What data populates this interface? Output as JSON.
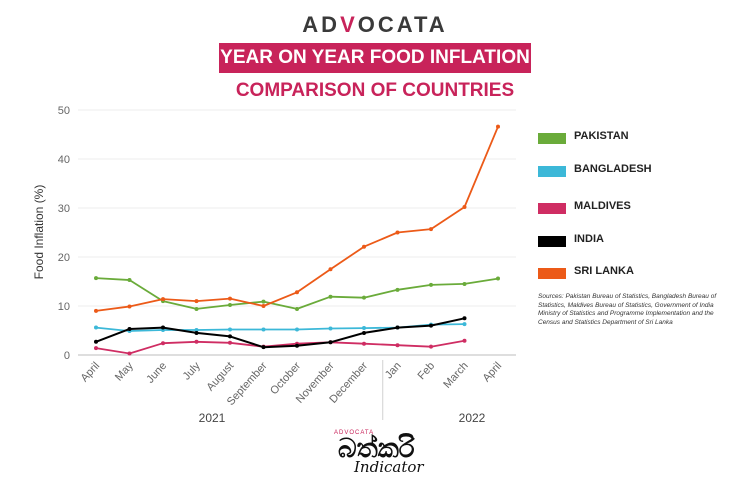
{
  "header": {
    "brand_pre": "AD",
    "brand_v": "V",
    "brand_post": "OCATA",
    "title": "YEAR ON YEAR FOOD INFLATION",
    "subtitle": "COMPARISON OF COUNTRIES"
  },
  "chart_data": {
    "type": "line",
    "title": "YEAR ON YEAR FOOD INFLATION",
    "subtitle": "COMPARISON OF COUNTRIES",
    "xlabel": "",
    "ylabel": "Food Inflation (%)",
    "ylim": [
      0,
      50
    ],
    "yticks": [
      0,
      10,
      20,
      30,
      40,
      50
    ],
    "grid": true,
    "categories": [
      "April",
      "May",
      "June",
      "July",
      "August",
      "September",
      "October",
      "November",
      "December",
      "Jan",
      "Feb",
      "March",
      "April"
    ],
    "year_groups": [
      {
        "label": "2021",
        "from": 0,
        "to": 8
      },
      {
        "label": "2022",
        "from": 9,
        "to": 12
      }
    ],
    "legend_position": "right",
    "series": [
      {
        "name": "PAKISTAN",
        "color": "#6aab3a",
        "values": [
          15.7,
          15.3,
          11.0,
          9.4,
          10.2,
          10.9,
          9.4,
          11.9,
          11.7,
          13.3,
          14.3,
          14.5,
          15.6
        ]
      },
      {
        "name": "BANGLADESH",
        "color": "#3cb8d8",
        "values": [
          5.6,
          4.9,
          5.1,
          5.1,
          5.2,
          5.2,
          5.2,
          5.4,
          5.5,
          5.6,
          6.2,
          6.3,
          null
        ]
      },
      {
        "name": "MALDIVES",
        "color": "#cf2d63",
        "values": [
          1.4,
          0.3,
          2.4,
          2.7,
          2.5,
          1.7,
          2.3,
          2.6,
          2.3,
          2.0,
          1.7,
          2.9,
          null
        ]
      },
      {
        "name": "INDIA",
        "color": "#000000",
        "values": [
          2.7,
          5.3,
          5.6,
          4.5,
          3.8,
          1.6,
          1.9,
          2.6,
          4.5,
          5.6,
          6.0,
          7.5,
          null
        ]
      },
      {
        "name": "SRI LANKA",
        "color": "#ec5a18",
        "values": [
          9.0,
          9.9,
          11.4,
          11.0,
          11.5,
          10.0,
          12.8,
          17.5,
          22.1,
          25.0,
          25.7,
          30.2,
          46.6
        ]
      }
    ],
    "annotations": [
      "Sources: Pakistan Bureau of Statistics, Bangladesh Bureau of Statistics, Maldives Bureau of Statistics, Government of India Ministry of Statistics and Programme Implementation and the Census and Statistics Department of Sri Lanka"
    ]
  },
  "sources_text": "Sources: Pakistan Bureau of Statistics, Bangladesh Bureau of Statistics, Maldives Bureau of Statistics, Government of India Ministry of Statistics and Programme Implementation and the Census and Statistics Department of Sri Lanka",
  "footer": {
    "brand": "ADVOCATA",
    "glyph": "බත්කරි",
    "indicator": "Indicator"
  }
}
